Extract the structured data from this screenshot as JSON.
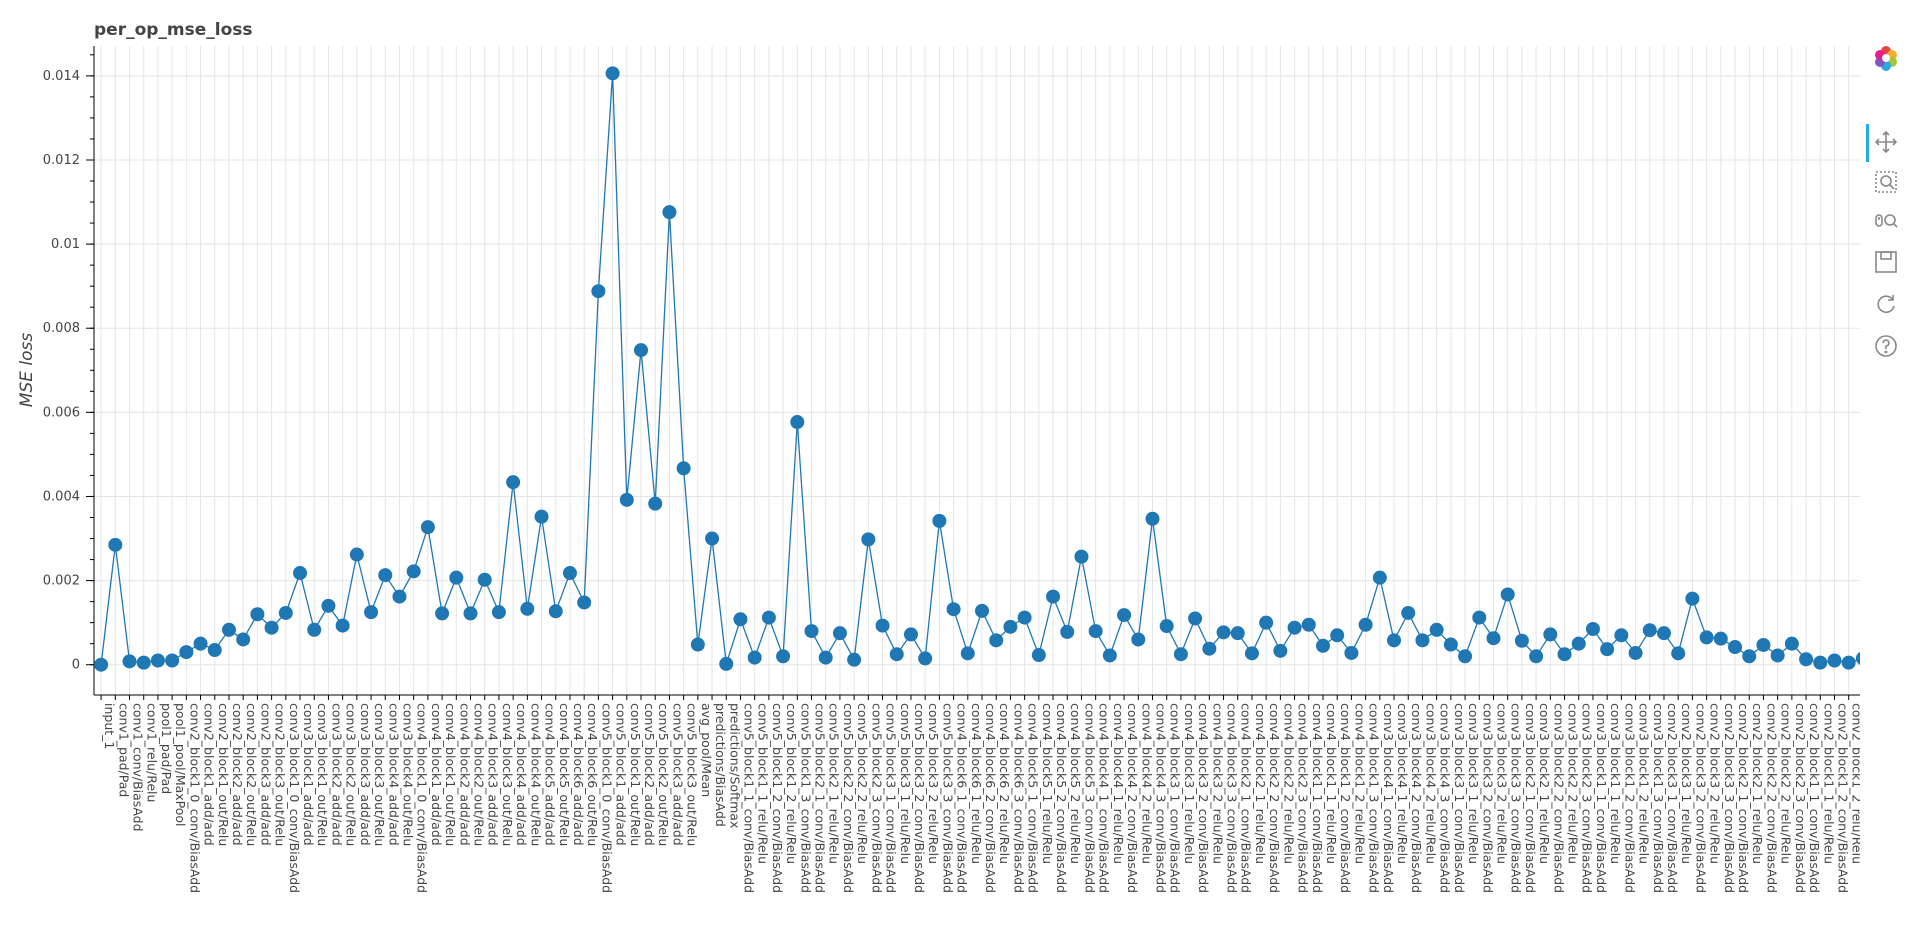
{
  "chart_data": {
    "type": "line",
    "title": "per_op_mse_loss",
    "xlabel": "",
    "ylabel": "MSE loss",
    "ylim": [
      -0.00072,
      0.01471
    ],
    "yticks": [
      "0",
      "0.002",
      "0.004",
      "0.006",
      "0.008",
      "0.01",
      "0.012",
      "0.014"
    ],
    "grid": true,
    "line_color": "#1f77b4",
    "categories": [
      "input_1",
      "conv1_pad/Pad",
      "conv1_conv/BiasAdd",
      "conv1_relu/Relu",
      "pool1_pad/Pad",
      "pool1_pool/MaxPool",
      "conv2_block1_0_conv/BiasAdd",
      "conv2_block1_add/add",
      "conv2_block1_out/Relu",
      "conv2_block2_add/add",
      "conv2_block2_out/Relu",
      "conv2_block3_add/add",
      "conv2_block3_out/Relu",
      "conv3_block1_0_conv/BiasAdd",
      "conv3_block1_add/add",
      "conv3_block1_out/Relu",
      "conv3_block2_add/add",
      "conv3_block2_out/Relu",
      "conv3_block3_add/add",
      "conv3_block3_out/Relu",
      "conv3_block4_add/add",
      "conv3_block4_out/Relu",
      "conv4_block1_0_conv/BiasAdd",
      "conv4_block1_add/add",
      "conv4_block1_out/Relu",
      "conv4_block2_add/add",
      "conv4_block2_out/Relu",
      "conv4_block3_add/add",
      "conv4_block3_out/Relu",
      "conv4_block4_add/add",
      "conv4_block4_out/Relu",
      "conv4_block5_add/add",
      "conv4_block5_out/Relu",
      "conv4_block6_add/add",
      "conv4_block6_out/Relu",
      "conv5_block1_0_conv/BiasAdd",
      "conv5_block1_add/add",
      "conv5_block1_out/Relu",
      "conv5_block2_add/add",
      "conv5_block2_out/Relu",
      "conv5_block3_add/add",
      "conv5_block3_out/Relu",
      "avg_pool/Mean",
      "predictions/BiasAdd",
      "predictions/Softmax",
      "conv5_block1_1_conv/BiasAdd",
      "conv5_block1_1_relu/Relu",
      "conv5_block1_2_conv/BiasAdd",
      "conv5_block1_2_relu/Relu",
      "conv5_block1_3_conv/BiasAdd",
      "conv5_block2_1_conv/BiasAdd",
      "conv5_block2_1_relu/Relu",
      "conv5_block2_2_conv/BiasAdd",
      "conv5_block2_2_relu/Relu",
      "conv5_block2_3_conv/BiasAdd",
      "conv5_block3_1_conv/BiasAdd",
      "conv5_block3_1_relu/Relu",
      "conv5_block3_2_conv/BiasAdd",
      "conv5_block3_2_relu/Relu",
      "conv5_block3_3_conv/BiasAdd",
      "conv4_block6_1_conv/BiasAdd",
      "conv4_block6_1_relu/Relu",
      "conv4_block6_2_conv/BiasAdd",
      "conv4_block6_2_relu/Relu",
      "conv4_block6_3_conv/BiasAdd",
      "conv4_block5_1_conv/BiasAdd",
      "conv4_block5_1_relu/Relu",
      "conv4_block5_2_conv/BiasAdd",
      "conv4_block5_2_relu/Relu",
      "conv4_block5_3_conv/BiasAdd",
      "conv4_block4_1_conv/BiasAdd",
      "conv4_block4_1_relu/Relu",
      "conv4_block4_2_conv/BiasAdd",
      "conv4_block4_2_relu/Relu",
      "conv4_block4_3_conv/BiasAdd",
      "conv4_block3_1_conv/BiasAdd",
      "conv4_block3_1_relu/Relu",
      "conv4_block3_2_conv/BiasAdd",
      "conv4_block3_2_relu/Relu",
      "conv4_block3_3_conv/BiasAdd",
      "conv4_block2_1_conv/BiasAdd",
      "conv4_block2_1_relu/Relu",
      "conv4_block2_2_conv/BiasAdd",
      "conv4_block2_2_relu/Relu",
      "conv4_block2_3_conv/BiasAdd",
      "conv4_block1_1_conv/BiasAdd",
      "conv4_block1_1_relu/Relu",
      "conv4_block1_2_conv/BiasAdd",
      "conv4_block1_2_relu/Relu",
      "conv4_block1_3_conv/BiasAdd",
      "conv3_block4_1_conv/BiasAdd",
      "conv3_block4_1_relu/Relu",
      "conv3_block4_2_conv/BiasAdd",
      "conv3_block4_2_relu/Relu",
      "conv3_block4_3_conv/BiasAdd",
      "conv3_block3_1_conv/BiasAdd",
      "conv3_block3_1_relu/Relu",
      "conv3_block3_2_conv/BiasAdd",
      "conv3_block3_2_relu/Relu",
      "conv3_block3_3_conv/BiasAdd",
      "conv3_block2_1_conv/BiasAdd",
      "conv3_block2_1_relu/Relu",
      "conv3_block2_2_conv/BiasAdd",
      "conv3_block2_2_relu/Relu",
      "conv3_block2_3_conv/BiasAdd",
      "conv3_block1_1_conv/BiasAdd",
      "conv3_block1_1_relu/Relu",
      "conv3_block1_2_conv/BiasAdd",
      "conv3_block1_2_relu/Relu",
      "conv3_block1_3_conv/BiasAdd",
      "conv2_block3_1_conv/BiasAdd",
      "conv2_block3_1_relu/Relu",
      "conv2_block3_2_conv/BiasAdd",
      "conv2_block3_2_relu/Relu",
      "conv2_block3_3_conv/BiasAdd",
      "conv2_block2_1_conv/BiasAdd",
      "conv2_block2_1_relu/Relu",
      "conv2_block2_2_conv/BiasAdd",
      "conv2_block2_2_relu/Relu",
      "conv2_block2_3_conv/BiasAdd",
      "conv2_block1_1_conv/BiasAdd",
      "conv2_block1_1_relu/Relu",
      "conv2_block1_2_conv/BiasAdd",
      "conv2_block1_2_relu/Relu",
      "conv2_block1_3_conv/BiasAdd"
    ],
    "values": [
      0.0,
      0.00285,
      8e-05,
      5e-05,
      0.0001,
      0.0001,
      0.0003,
      0.0005,
      0.00035,
      0.00083,
      0.0006,
      0.0012,
      0.00088,
      0.00123,
      0.00218,
      0.00083,
      0.0014,
      0.00093,
      0.00262,
      0.00125,
      0.00213,
      0.00162,
      0.00222,
      0.00327,
      0.00122,
      0.00207,
      0.00122,
      0.00202,
      0.00125,
      0.00434,
      0.00133,
      0.00352,
      0.00127,
      0.00218,
      0.00148,
      0.00888,
      0.01406,
      0.00392,
      0.00748,
      0.00383,
      0.01076,
      0.00467,
      0.00048,
      0.003,
      2e-05,
      0.00108,
      0.00017,
      0.00112,
      0.0002,
      0.00577,
      0.0008,
      0.00017,
      0.00075,
      0.00012,
      0.00298,
      0.00093,
      0.00025,
      0.00072,
      0.00015,
      0.00342,
      0.00132,
      0.00027,
      0.00128,
      0.00058,
      0.0009,
      0.00112,
      0.00023,
      0.00162,
      0.00078,
      0.00257,
      0.0008,
      0.00022,
      0.00118,
      0.0006,
      0.00347,
      0.00092,
      0.00025,
      0.0011,
      0.00038,
      0.00077,
      0.00075,
      0.00027,
      0.001,
      0.00033,
      0.00088,
      0.00095,
      0.00045,
      0.0007,
      0.00028,
      0.00095,
      0.00207,
      0.00058,
      0.00123,
      0.00058,
      0.00083,
      0.00048,
      0.0002,
      0.00112,
      0.00063,
      0.00167,
      0.00057,
      0.0002,
      0.00072,
      0.00025,
      0.0005,
      0.00085,
      0.00037,
      0.0007,
      0.00028,
      0.00082,
      0.00075,
      0.00027,
      0.00157,
      0.00065,
      0.00062,
      0.00042,
      0.0002,
      0.00047,
      0.00022,
      0.0005,
      0.00013,
      5e-05,
      0.0001,
      5e-05,
      0.00015
    ]
  },
  "toolbar": {
    "items": [
      {
        "name": "bokeh-logo-icon"
      },
      {
        "name": "pan-tool-icon"
      },
      {
        "name": "box-zoom-tool-icon"
      },
      {
        "name": "wheel-zoom-tool-icon"
      },
      {
        "name": "save-tool-icon"
      },
      {
        "name": "reset-tool-icon"
      },
      {
        "name": "help-tool-icon"
      }
    ],
    "active_color": "#26aae1"
  }
}
